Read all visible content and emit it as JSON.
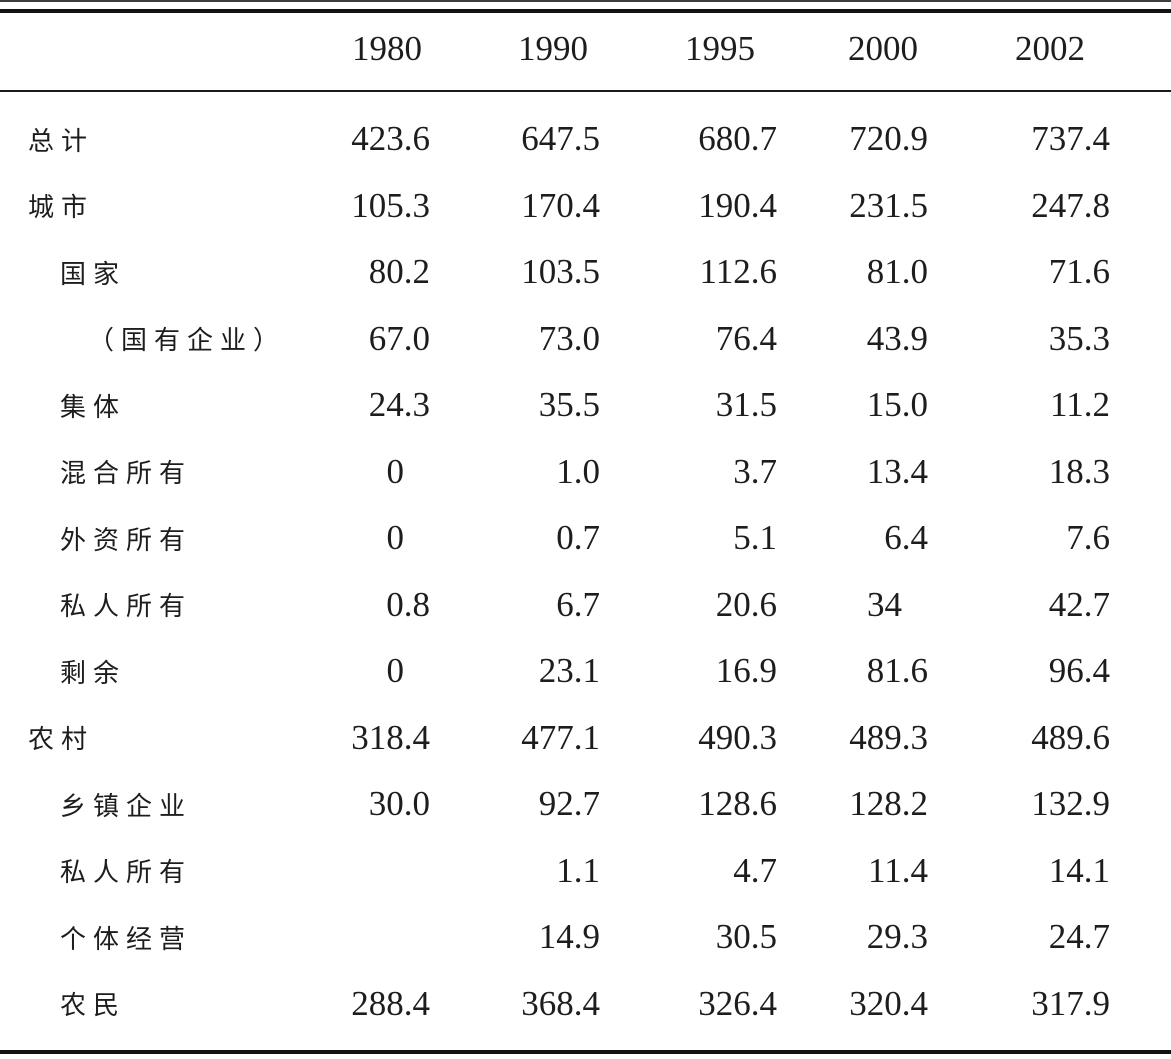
{
  "colors": {
    "background": "#ffffff",
    "text": "#1d1d1d",
    "thick_rule": "#121212",
    "thin_rule": "#1a1a1a"
  },
  "chart_data": {
    "type": "table",
    "columns": [
      "1980",
      "1990",
      "1995",
      "2000",
      "2002"
    ],
    "rows": [
      {
        "label": "总计",
        "indent": 0,
        "values": [
          "423.6",
          "647.5",
          "680.7",
          "720.9",
          "737.4"
        ]
      },
      {
        "label": "城市",
        "indent": 0,
        "values": [
          "105.3",
          "170.4",
          "190.4",
          "231.5",
          "247.8"
        ]
      },
      {
        "label": "国家",
        "indent": 1,
        "values": [
          "80.2",
          "103.5",
          "112.6",
          "81.0",
          "71.6"
        ]
      },
      {
        "label": "（国有企业）",
        "indent": 2,
        "values": [
          "67.0",
          "73.0",
          "76.4",
          "43.9",
          "35.3"
        ]
      },
      {
        "label": "集体",
        "indent": 1,
        "values": [
          "24.3",
          "35.5",
          "31.5",
          "15.0",
          "11.2"
        ]
      },
      {
        "label": "混合所有",
        "indent": 1,
        "values": [
          "0",
          "1.0",
          "3.7",
          "13.4",
          "18.3"
        ]
      },
      {
        "label": "外资所有",
        "indent": 1,
        "values": [
          "0",
          "0.7",
          "5.1",
          "6.4",
          "7.6"
        ]
      },
      {
        "label": "私人所有",
        "indent": 1,
        "values": [
          "0.8",
          "6.7",
          "20.6",
          "34",
          "42.7"
        ]
      },
      {
        "label": "剩余",
        "indent": 1,
        "values": [
          "0",
          "23.1",
          "16.9",
          "81.6",
          "96.4"
        ]
      },
      {
        "label": "农村",
        "indent": 0,
        "values": [
          "318.4",
          "477.1",
          "490.3",
          "489.3",
          "489.6"
        ]
      },
      {
        "label": "乡镇企业",
        "indent": 1,
        "values": [
          "30.0",
          "92.7",
          "128.6",
          "128.2",
          "132.9"
        ]
      },
      {
        "label": "私人所有",
        "indent": 1,
        "values": [
          "",
          "1.1",
          "4.7",
          "11.4",
          "14.1"
        ]
      },
      {
        "label": "个体经营",
        "indent": 1,
        "values": [
          "",
          "14.9",
          "30.5",
          "29.3",
          "24.7"
        ]
      },
      {
        "label": "农民",
        "indent": 1,
        "values": [
          "288.4",
          "368.4",
          "326.4",
          "320.4",
          "317.9"
        ]
      }
    ]
  }
}
